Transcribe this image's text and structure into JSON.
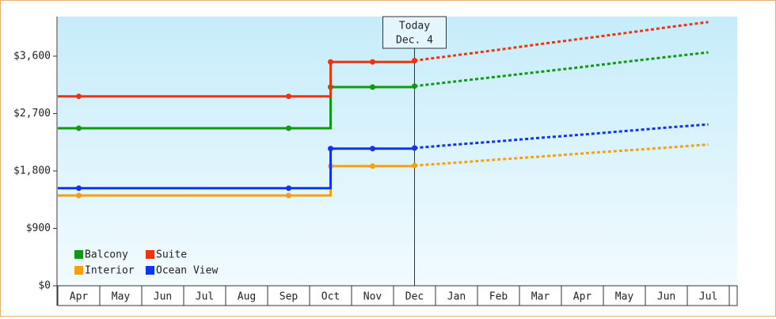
{
  "chart_data": {
    "type": "line",
    "categories": [
      "Apr",
      "May",
      "Jun",
      "Jul",
      "Aug",
      "Sep",
      "Oct",
      "Nov",
      "Dec",
      "Jan",
      "Feb",
      "Mar",
      "Apr",
      "May",
      "Jun",
      "Jul"
    ],
    "series": [
      {
        "name": "Balcony",
        "color": "#119911",
        "values": [
          2470,
          2470,
          2470,
          2470,
          2470,
          2470,
          3115,
          3115,
          3130,
          3205,
          3280,
          3355,
          3430,
          3510,
          3585,
          3660
        ]
      },
      {
        "name": "Suite",
        "color": "#ee3311",
        "values": [
          2970,
          2970,
          2970,
          2970,
          2970,
          2970,
          3510,
          3510,
          3530,
          3615,
          3700,
          3790,
          3875,
          3960,
          4050,
          4135
        ]
      },
      {
        "name": "Interior",
        "color": "#f5a010",
        "values": [
          1415,
          1415,
          1415,
          1415,
          1415,
          1415,
          1875,
          1875,
          1885,
          1930,
          1980,
          2025,
          2075,
          2120,
          2165,
          2215
        ]
      },
      {
        "name": "Ocean View",
        "color": "#1133ee",
        "values": [
          1530,
          1530,
          1530,
          1530,
          1530,
          1530,
          2150,
          2150,
          2160,
          2215,
          2265,
          2320,
          2370,
          2425,
          2480,
          2530
        ]
      }
    ],
    "annotation": {
      "lines": [
        "Today",
        "Dec. 4"
      ],
      "at": "Dec"
    },
    "ylim": [
      0,
      4220
    ],
    "yticks": [
      {
        "value": 0,
        "label": "$0"
      },
      {
        "value": 900,
        "label": "$900"
      },
      {
        "value": 1800,
        "label": "$1,800"
      },
      {
        "value": 2700,
        "label": "$2,700"
      },
      {
        "value": 3600,
        "label": "$3,600"
      }
    ],
    "legend": "bottom-left"
  }
}
